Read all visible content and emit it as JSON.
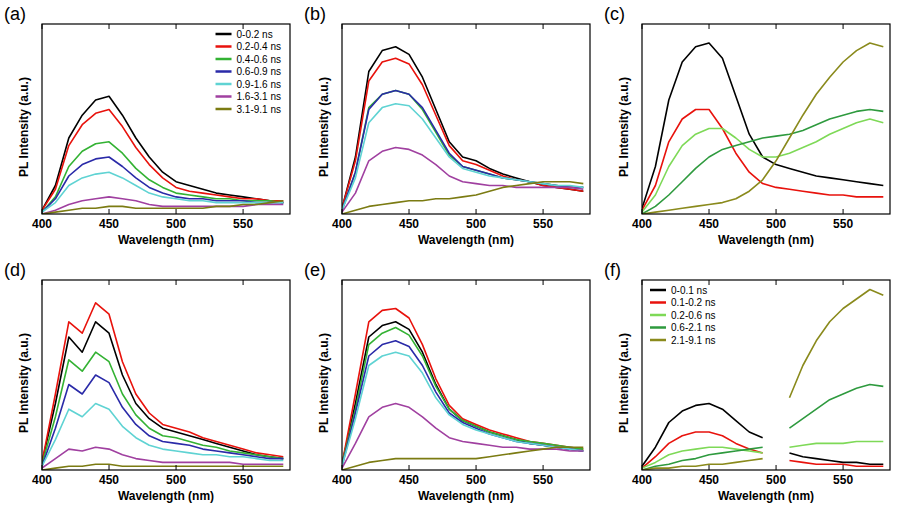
{
  "chart_data": [
    {
      "type": "line",
      "title": "(a)",
      "x_label": "Wavelength (nm)",
      "y_label": "PL Intensity (a.u.)",
      "x": [
        400,
        410,
        420,
        430,
        440,
        450,
        460,
        470,
        480,
        490,
        500,
        510,
        520,
        530,
        540,
        550,
        560,
        570,
        580
      ],
      "xlim": [
        400,
        585
      ],
      "xticks": [
        400,
        450,
        500,
        550
      ],
      "ylim": [
        0,
        100
      ],
      "tick_labels": "x",
      "legend": "upper right",
      "series": [
        {
          "name": "0-0.2 ns",
          "color": "#000000",
          "values": [
            2,
            15,
            40,
            52,
            60,
            62,
            52,
            40,
            30,
            22,
            17,
            15,
            13,
            11,
            10,
            9,
            8,
            7,
            6
          ]
        },
        {
          "name": "0.2-0.4 ns",
          "color": "#e8120c",
          "values": [
            2,
            13,
            36,
            47,
            53,
            55,
            46,
            35,
            26,
            19,
            14,
            12,
            11,
            10,
            9,
            8,
            8,
            7,
            7
          ]
        },
        {
          "name": "0.4-0.6 ns",
          "color": "#33b233",
          "values": [
            1,
            9,
            25,
            33,
            37,
            38,
            32,
            24,
            18,
            14,
            11,
            10,
            9,
            8,
            8,
            7,
            7,
            7,
            6
          ]
        },
        {
          "name": "0.6-0.9 ns",
          "color": "#2a2aa8",
          "values": [
            1,
            8,
            20,
            26,
            29,
            30,
            25,
            19,
            14,
            11,
            9,
            8,
            8,
            7,
            7,
            7,
            6,
            6,
            6
          ]
        },
        {
          "name": "0.9-1.6 ns",
          "color": "#5fd3d3",
          "values": [
            1,
            6,
            15,
            19,
            21,
            22,
            19,
            15,
            11,
            9,
            8,
            7,
            7,
            6,
            6,
            6,
            6,
            6,
            6
          ]
        },
        {
          "name": "1.6-3.1 ns",
          "color": "#a040a0",
          "values": [
            0,
            2,
            5,
            7,
            8,
            9,
            8,
            7,
            5,
            4,
            4,
            4,
            4,
            4,
            4,
            4,
            5,
            5,
            5
          ]
        },
        {
          "name": "3.1-9.1 ns",
          "color": "#7b7b12",
          "values": [
            0,
            1,
            2,
            3,
            3,
            4,
            4,
            3,
            3,
            3,
            3,
            3,
            3,
            4,
            4,
            5,
            5,
            6,
            7
          ]
        }
      ]
    },
    {
      "type": "line",
      "title": "(b)",
      "x_label": "Wavelength (nm)",
      "y_label": "PL Intensity (a.u.)",
      "x": [
        400,
        410,
        420,
        430,
        440,
        450,
        460,
        470,
        480,
        490,
        500,
        510,
        520,
        530,
        540,
        550,
        560,
        570,
        580
      ],
      "xlim": [
        400,
        585
      ],
      "xticks": [
        400,
        450,
        500,
        550
      ],
      "ylim": [
        0,
        100
      ],
      "tick_labels": "x",
      "series": [
        {
          "color": "#000000",
          "values": [
            3,
            30,
            75,
            86,
            88,
            84,
            72,
            55,
            38,
            30,
            28,
            24,
            21,
            19,
            17,
            15,
            14,
            13,
            12
          ]
        },
        {
          "color": "#e8120c",
          "values": [
            3,
            28,
            70,
            80,
            82,
            79,
            68,
            52,
            36,
            28,
            26,
            23,
            20,
            18,
            17,
            15,
            14,
            13,
            12
          ]
        },
        {
          "color": "#33b233",
          "values": [
            2,
            22,
            56,
            63,
            65,
            63,
            55,
            43,
            31,
            25,
            23,
            21,
            19,
            18,
            17,
            16,
            15,
            14,
            14
          ]
        },
        {
          "color": "#2a2aa8",
          "values": [
            2,
            22,
            55,
            63,
            65,
            63,
            56,
            44,
            32,
            25,
            23,
            21,
            19,
            18,
            17,
            16,
            15,
            14,
            14
          ]
        },
        {
          "color": "#5fd3d3",
          "values": [
            2,
            19,
            48,
            56,
            58,
            57,
            50,
            40,
            30,
            24,
            22,
            20,
            19,
            18,
            17,
            16,
            15,
            15,
            14
          ]
        },
        {
          "color": "#a040a0",
          "values": [
            1,
            11,
            28,
            33,
            35,
            34,
            31,
            26,
            20,
            17,
            16,
            15,
            15,
            14,
            14,
            14,
            14,
            14,
            13
          ]
        },
        {
          "color": "#7b7b12",
          "values": [
            0,
            2,
            4,
            5,
            6,
            7,
            7,
            8,
            8,
            9,
            10,
            12,
            14,
            15,
            16,
            17,
            17,
            17,
            16
          ]
        }
      ]
    },
    {
      "type": "line",
      "title": "(c)",
      "x_label": "Wavelength (nm)",
      "y_label": "PL Intensity (a.u.)",
      "x": [
        400,
        410,
        420,
        430,
        440,
        450,
        460,
        470,
        480,
        490,
        500,
        510,
        520,
        530,
        540,
        550,
        560,
        570,
        580
      ],
      "xlim": [
        400,
        585
      ],
      "xticks": [
        400,
        450,
        500,
        550
      ],
      "ylim": [
        0,
        100
      ],
      "tick_labels": "x",
      "series": [
        {
          "color": "#000000",
          "values": [
            3,
            25,
            60,
            80,
            88,
            90,
            82,
            62,
            42,
            30,
            26,
            24,
            22,
            20,
            19,
            18,
            17,
            16,
            15
          ]
        },
        {
          "color": "#e8120c",
          "values": [
            2,
            15,
            38,
            50,
            55,
            55,
            45,
            32,
            22,
            16,
            14,
            13,
            12,
            11,
            10,
            10,
            9,
            9,
            9
          ]
        },
        {
          "color": "#7ed957",
          "values": [
            1,
            10,
            25,
            36,
            42,
            45,
            45,
            40,
            34,
            30,
            30,
            32,
            35,
            38,
            42,
            45,
            48,
            50,
            48
          ]
        },
        {
          "color": "#2e9a3e",
          "values": [
            0,
            4,
            10,
            17,
            24,
            30,
            34,
            36,
            38,
            40,
            41,
            42,
            44,
            47,
            50,
            52,
            54,
            55,
            54
          ]
        },
        {
          "color": "#8a8a1c",
          "values": [
            0,
            1,
            2,
            3,
            4,
            5,
            6,
            8,
            12,
            18,
            28,
            40,
            52,
            63,
            72,
            80,
            86,
            90,
            88
          ]
        }
      ]
    },
    {
      "type": "line",
      "title": "(d)",
      "x_label": "Wavelength (nm)",
      "y_label": "PL Intensity (a.u.)",
      "x": [
        400,
        410,
        420,
        430,
        440,
        450,
        460,
        470,
        480,
        490,
        500,
        510,
        520,
        530,
        540,
        550,
        560,
        570,
        580
      ],
      "xlim": [
        400,
        585
      ],
      "xticks": [
        400,
        450,
        500,
        550
      ],
      "ylim": [
        0,
        100
      ],
      "tick_labels": "x",
      "series": [
        {
          "color": "#000000",
          "values": [
            4,
            35,
            70,
            62,
            78,
            72,
            50,
            35,
            27,
            22,
            20,
            18,
            16,
            14,
            12,
            10,
            8,
            7,
            6
          ]
        },
        {
          "color": "#e8120c",
          "values": [
            4,
            40,
            78,
            72,
            88,
            82,
            57,
            40,
            30,
            24,
            22,
            20,
            17,
            15,
            13,
            11,
            9,
            8,
            7
          ]
        },
        {
          "color": "#33b233",
          "values": [
            3,
            28,
            58,
            52,
            62,
            57,
            40,
            29,
            22,
            18,
            17,
            15,
            13,
            12,
            10,
            9,
            8,
            7,
            6
          ]
        },
        {
          "color": "#2a2aa8",
          "values": [
            2,
            22,
            45,
            40,
            50,
            46,
            33,
            24,
            18,
            15,
            14,
            13,
            11,
            10,
            9,
            8,
            7,
            6,
            6
          ]
        },
        {
          "color": "#5fd3d3",
          "values": [
            2,
            16,
            32,
            28,
            35,
            32,
            23,
            17,
            13,
            11,
            10,
            9,
            8,
            8,
            7,
            7,
            6,
            5,
            5
          ]
        },
        {
          "color": "#a040a0",
          "values": [
            1,
            6,
            11,
            10,
            12,
            11,
            8,
            6,
            5,
            4,
            4,
            4,
            4,
            4,
            4,
            3,
            3,
            3,
            3
          ]
        },
        {
          "color": "#7b7b12",
          "values": [
            0,
            1,
            2,
            2,
            3,
            3,
            2,
            2,
            2,
            2,
            2,
            2,
            2,
            2,
            2,
            2,
            2,
            2,
            2
          ]
        }
      ]
    },
    {
      "type": "line",
      "title": "(e)",
      "x_label": "Wavelength (nm)",
      "y_label": "PL Intensity (a.u.)",
      "x": [
        400,
        410,
        420,
        430,
        440,
        450,
        460,
        470,
        480,
        490,
        500,
        510,
        520,
        530,
        540,
        550,
        560,
        570,
        580
      ],
      "xlim": [
        400,
        585
      ],
      "xticks": [
        400,
        450,
        500,
        550
      ],
      "ylim": [
        0,
        100
      ],
      "tick_labels": "x",
      "series": [
        {
          "color": "#000000",
          "values": [
            3,
            35,
            70,
            76,
            78,
            74,
            62,
            45,
            32,
            26,
            23,
            20,
            18,
            16,
            14,
            13,
            12,
            11,
            10
          ]
        },
        {
          "color": "#e8120c",
          "values": [
            3,
            40,
            78,
            84,
            85,
            80,
            66,
            48,
            34,
            27,
            24,
            21,
            19,
            17,
            15,
            14,
            13,
            12,
            11
          ]
        },
        {
          "color": "#33b233",
          "values": [
            3,
            32,
            66,
            72,
            75,
            71,
            60,
            44,
            32,
            26,
            23,
            20,
            18,
            16,
            15,
            14,
            13,
            12,
            11
          ]
        },
        {
          "color": "#2a2aa8",
          "values": [
            2,
            30,
            60,
            66,
            68,
            65,
            55,
            41,
            30,
            25,
            22,
            19,
            17,
            15,
            14,
            13,
            12,
            11,
            10
          ]
        },
        {
          "color": "#5fd3d3",
          "values": [
            2,
            27,
            55,
            60,
            62,
            60,
            51,
            38,
            29,
            24,
            21,
            19,
            17,
            15,
            14,
            13,
            12,
            11,
            10
          ]
        },
        {
          "color": "#a040a0",
          "values": [
            1,
            14,
            28,
            33,
            35,
            33,
            28,
            22,
            17,
            15,
            14,
            13,
            12,
            12,
            11,
            11,
            11,
            10,
            10
          ]
        },
        {
          "color": "#7b7b12",
          "values": [
            0,
            2,
            4,
            5,
            6,
            6,
            6,
            6,
            6,
            6,
            6,
            7,
            8,
            9,
            10,
            11,
            12,
            12,
            12
          ]
        }
      ]
    },
    {
      "type": "line",
      "title": "(f)",
      "x_label": "Wavelength (nm)",
      "y_label": "PL Intensity (a.u.)",
      "x": [
        400,
        410,
        420,
        430,
        440,
        450,
        460,
        470,
        480,
        490,
        500,
        510,
        520,
        530,
        540,
        550,
        560,
        570,
        580
      ],
      "xlim": [
        400,
        585
      ],
      "xticks": [
        400,
        450,
        500,
        550
      ],
      "ylim": [
        0,
        100
      ],
      "tick_labels": "x",
      "legend": "upper left",
      "series": [
        {
          "name": "0-0.1 ns",
          "color": "#000000",
          "values": [
            2,
            12,
            25,
            31,
            34,
            35,
            32,
            26,
            20,
            17,
            null,
            9,
            7,
            6,
            5,
            4,
            4,
            3,
            3
          ]
        },
        {
          "name": "0.1-0.2 ns",
          "color": "#e8120c",
          "values": [
            1,
            7,
            14,
            18,
            20,
            20,
            18,
            14,
            11,
            9,
            null,
            5,
            4,
            3,
            3,
            3,
            2,
            2,
            2
          ]
        },
        {
          "name": "0.2-0.6 ns",
          "color": "#7ed957",
          "values": [
            1,
            4,
            8,
            10,
            11,
            12,
            12,
            11,
            10,
            9,
            null,
            12,
            13,
            14,
            14,
            14,
            15,
            15,
            15
          ]
        },
        {
          "name": "0.6-2.1 ns",
          "color": "#2e9a3e",
          "values": [
            0,
            2,
            3,
            5,
            6,
            8,
            9,
            10,
            11,
            12,
            null,
            22,
            27,
            32,
            37,
            40,
            43,
            45,
            44
          ]
        },
        {
          "name": "2.1-9.1 ns",
          "color": "#8a8a1c",
          "values": [
            0,
            1,
            1,
            2,
            2,
            3,
            3,
            4,
            5,
            6,
            null,
            38,
            55,
            68,
            78,
            85,
            90,
            95,
            92
          ]
        }
      ]
    }
  ]
}
